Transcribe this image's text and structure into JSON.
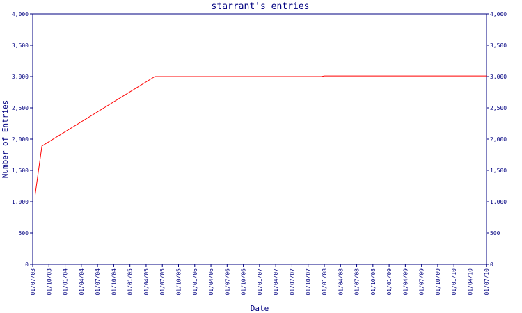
{
  "chart_data": {
    "type": "line",
    "title": "starrant's entries",
    "xlabel": "Date",
    "ylabel": "Number of Entries",
    "ylim": [
      0,
      4000
    ],
    "y_ticks": [
      0,
      500,
      1000,
      1500,
      2000,
      2500,
      3000,
      3500,
      4000
    ],
    "y_tick_labels": [
      "0",
      "500",
      "1,000",
      "1,500",
      "2,000",
      "2,500",
      "3,000",
      "3,500",
      "4,000"
    ],
    "x_tick_labels": [
      "01/07/03",
      "01/10/03",
      "01/01/04",
      "01/04/04",
      "01/07/04",
      "01/10/04",
      "01/01/05",
      "01/04/05",
      "01/07/05",
      "01/10/05",
      "01/01/06",
      "01/04/06",
      "01/07/06",
      "01/10/06",
      "01/01/07",
      "01/04/07",
      "01/07/07",
      "01/10/07",
      "01/01/08",
      "01/04/08",
      "01/07/08",
      "01/10/08",
      "01/01/09",
      "01/04/09",
      "01/07/09",
      "01/10/09",
      "01/01/10",
      "01/04/10",
      "01/07/10"
    ],
    "series": [
      {
        "color": "#ff0000",
        "points": [
          {
            "x": "2003-07-15",
            "y": 1110
          },
          {
            "x": "2003-08-22",
            "y": 1890
          },
          {
            "x": "2005-05-20",
            "y": 3000
          },
          {
            "x": "2007-12-15",
            "y": 3000
          },
          {
            "x": "2008-01-01",
            "y": 3010
          },
          {
            "x": "2010-07-01",
            "y": 3010
          }
        ]
      }
    ],
    "grid": false,
    "colors": {
      "axis": "#000080",
      "text": "#000080",
      "line": "#ff0000"
    }
  }
}
